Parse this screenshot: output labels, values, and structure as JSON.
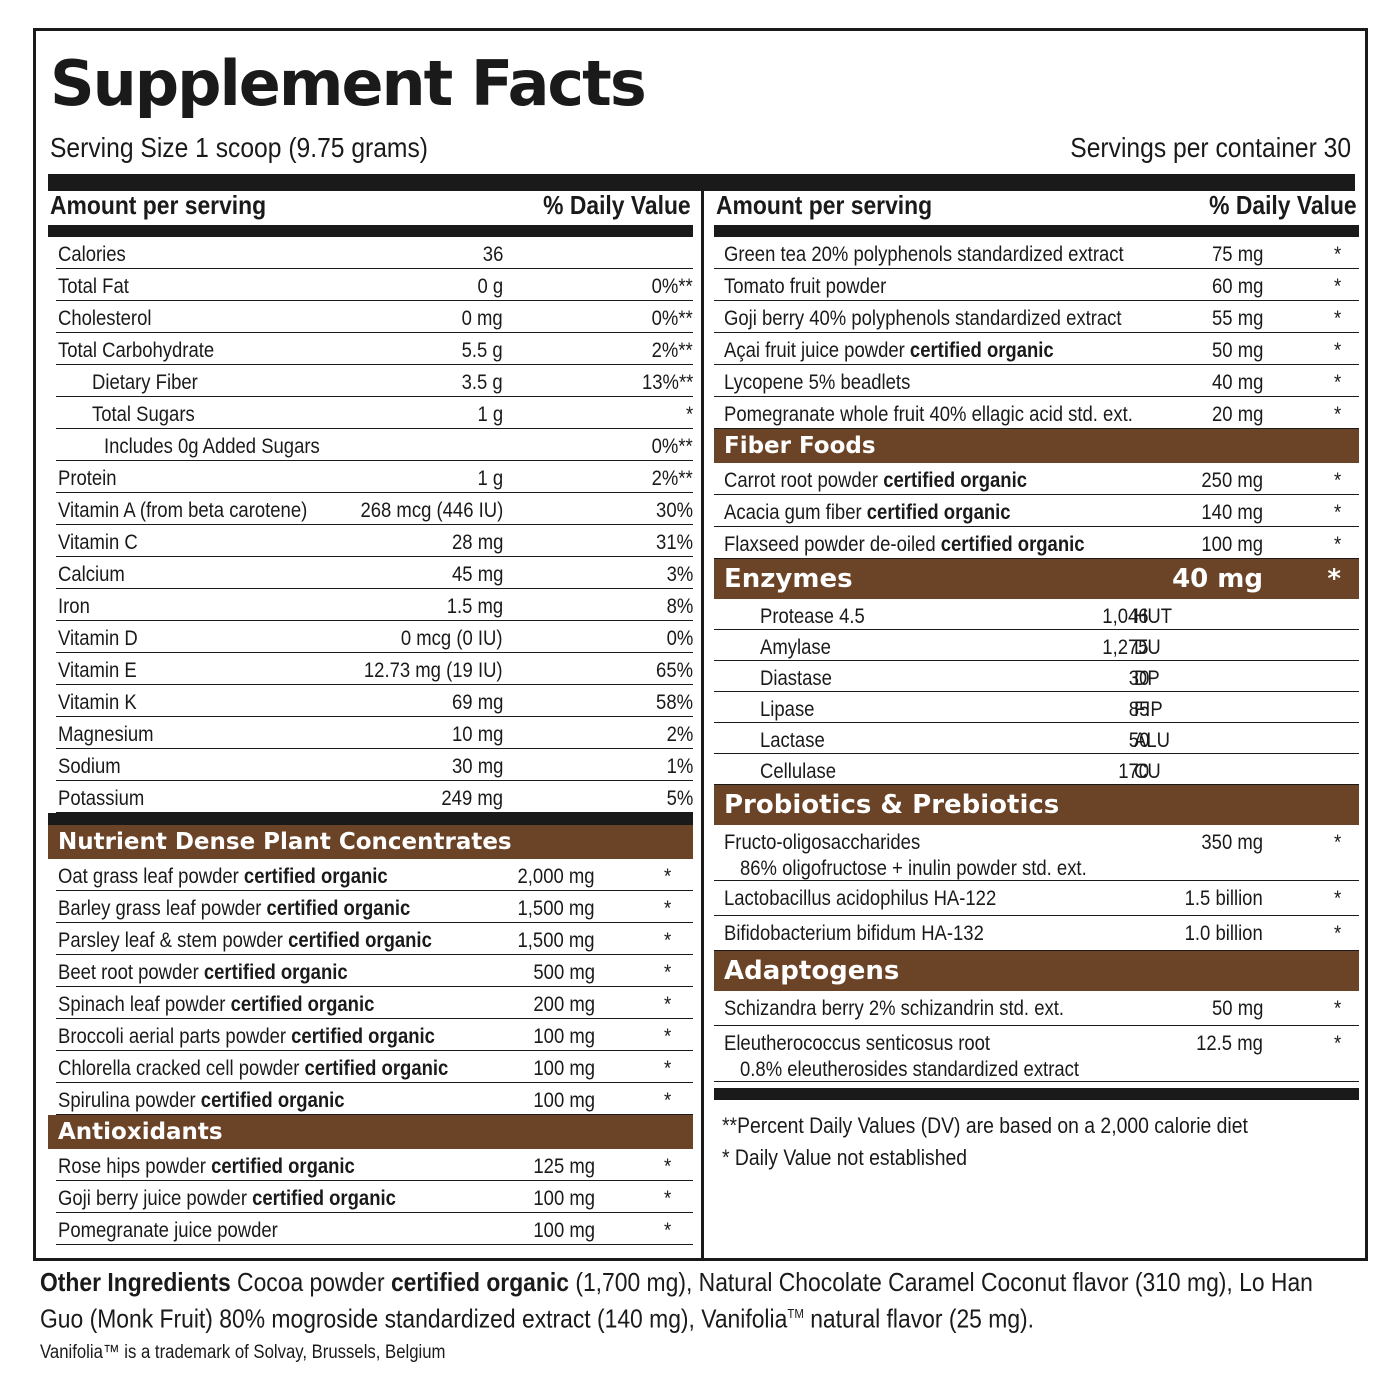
{
  "header": {
    "title": "Supplement Facts",
    "serving_size": "Serving Size 1 scoop (9.75 grams)",
    "servings_per_container": "Servings per container 30",
    "amount_label": "Amount per serving",
    "dv_label": "% Daily Value"
  },
  "facts": [
    {
      "name": "Calories",
      "amount": "36",
      "dv": ""
    },
    {
      "name": "Total Fat",
      "amount": "0 g",
      "dv": "0%**"
    },
    {
      "name": "Cholesterol",
      "amount": "0 mg",
      "dv": "0%**"
    },
    {
      "name": "Total Carbohydrate",
      "amount": "5.5 g",
      "dv": "2%**"
    },
    {
      "name": "Dietary Fiber",
      "amount": "3.5 g",
      "dv": "13%**"
    },
    {
      "name": "Total Sugars",
      "amount": "1 g",
      "dv": "*"
    },
    {
      "name": "Includes 0g Added Sugars",
      "amount": "",
      "dv": "0%**"
    },
    {
      "name": "Protein",
      "amount": "1 g",
      "dv": "2%**"
    },
    {
      "name": "Vitamin A (from beta carotene)",
      "amount": "268 mcg  (446 IU)",
      "dv": "30%"
    },
    {
      "name": "Vitamin C",
      "amount": "28 mg",
      "dv": "31%"
    },
    {
      "name": "Calcium",
      "amount": "45 mg",
      "dv": "3%"
    },
    {
      "name": "Iron",
      "amount": "1.5 mg",
      "dv": "8%"
    },
    {
      "name": "Vitamin D",
      "amount": "0 mcg  (0 IU)",
      "dv": "0%"
    },
    {
      "name": "Vitamin E",
      "amount": "12.73 mg  (19 IU)",
      "dv": "65%"
    },
    {
      "name": "Vitamin K",
      "amount": "69 mg",
      "dv": "58%"
    },
    {
      "name": "Magnesium",
      "amount": "10 mg",
      "dv": "2%"
    },
    {
      "name": "Sodium",
      "amount": "30 mg",
      "dv": "1%"
    },
    {
      "name": "Potassium",
      "amount": "249 mg",
      "dv": "5%"
    }
  ],
  "organic_label": "certified organic",
  "plant_concentrates": {
    "title": "Nutrient Dense Plant Concentrates",
    "items": [
      {
        "name": "Oat grass leaf powder ",
        "amount": "2,000 mg",
        "dv": "*"
      },
      {
        "name": "Barley grass leaf powder ",
        "amount": "1,500 mg",
        "dv": "*"
      },
      {
        "name": "Parsley leaf & stem powder ",
        "amount": "1,500 mg",
        "dv": "*"
      },
      {
        "name": "Beet root powder ",
        "amount": "500 mg",
        "dv": "*"
      },
      {
        "name": "Spinach leaf powder ",
        "amount": "200 mg",
        "dv": "*"
      },
      {
        "name": "Broccoli aerial parts powder ",
        "amount": "100 mg",
        "dv": "*"
      },
      {
        "name": "Chlorella cracked cell powder ",
        "amount": "100 mg",
        "dv": "*"
      },
      {
        "name": "Spirulina powder ",
        "amount": "100 mg",
        "dv": "*"
      }
    ]
  },
  "antioxidants": {
    "title": "Antioxidants",
    "items": [
      {
        "name": "Rose hips powder ",
        "amount": "125 mg",
        "dv": "*"
      },
      {
        "name": "Goji berry juice powder ",
        "amount": "100 mg",
        "dv": "*"
      },
      {
        "name": "Pomegranate juice powder",
        "amount": "100 mg",
        "dv": "*"
      }
    ]
  },
  "right_top": [
    {
      "name": "Green tea 20% polyphenols standardized extract",
      "amount": "75 mg",
      "dv": "*"
    },
    {
      "name": "Tomato fruit powder",
      "amount": "60 mg",
      "dv": "*"
    },
    {
      "name": "Goji berry 40% polyphenols standardized extract",
      "amount": "55 mg",
      "dv": "*"
    },
    {
      "name": "Açai fruit juice powder ",
      "amount": "50 mg",
      "dv": "*"
    },
    {
      "name": "Lycopene 5% beadlets",
      "amount": "40 mg",
      "dv": "*"
    },
    {
      "name": "Pomegranate whole fruit 40% ellagic acid std. ext.",
      "amount": "20 mg",
      "dv": "*"
    }
  ],
  "fiber_foods": {
    "title": "Fiber Foods",
    "items": [
      {
        "name": "Carrot root powder ",
        "amount": "250 mg",
        "dv": "*"
      },
      {
        "name": "Acacia gum fiber ",
        "amount": "140 mg",
        "dv": "*"
      },
      {
        "name": "Flaxseed powder de-oiled  ",
        "amount": "100 mg",
        "dv": "*"
      }
    ]
  },
  "enzymes": {
    "title": "Enzymes",
    "amount": "40 mg",
    "dv": "*",
    "items": [
      {
        "name": "Protease 4.5",
        "value": "1,046",
        "unit": "HUT"
      },
      {
        "name": "Amylase",
        "value": "1,275",
        "unit": "DU"
      },
      {
        "name": "Diastase",
        "value": "30",
        "unit": "DP"
      },
      {
        "name": "Lipase",
        "value": "85",
        "unit": "FIP"
      },
      {
        "name": "Lactase",
        "value": "50",
        "unit": "ALU"
      },
      {
        "name": "Cellulase",
        "value": "170",
        "unit": "CU"
      }
    ]
  },
  "probiotics": {
    "title": "Probiotics & Prebiotics",
    "items": [
      {
        "name": "Fructo-oligosaccharides",
        "sub": "86% oligofructose + inulin powder std. ext.",
        "amount": "350 mg",
        "dv": "*"
      },
      {
        "name": "Lactobacillus acidophilus HA-122",
        "amount": "1.5 billion",
        "dv": "*"
      },
      {
        "name": "Bifidobacterium bifidum HA-132",
        "amount": "1.0 billion",
        "dv": "*"
      }
    ]
  },
  "adaptogens": {
    "title": "Adaptogens",
    "items": [
      {
        "name": "Schizandra berry 2% schizandrin std. ext.",
        "amount": "50 mg",
        "dv": "*"
      },
      {
        "name": "Eleutherococcus senticosus root",
        "sub": "0.8% eleutherosides standardized extract",
        "amount": "12.5 mg",
        "dv": "*"
      }
    ]
  },
  "footnotes": {
    "dv_note": "**Percent Daily Values (DV) are based on a 2,000 calorie diet",
    "not_established": "* Daily Value not established"
  },
  "other_ingredients": {
    "label": "Other Ingredients",
    "part1": " Cocoa powder ",
    "organic": "certified organic",
    "part2": " (1,700 mg),  Natural Chocolate Caramel Coconut flavor (310 mg), Lo Han Guo (Monk Fruit) 80% mogroside standardized extract (140 mg), Vanifolia",
    "tm": "TM",
    "part3": " natural flavor (25 mg)."
  },
  "trademark": "Vanifolia™ is a trademark of Solvay, Brussels, Belgium",
  "colors": {
    "section_bg": "#6b4327",
    "rule": "#1a1a1a"
  }
}
